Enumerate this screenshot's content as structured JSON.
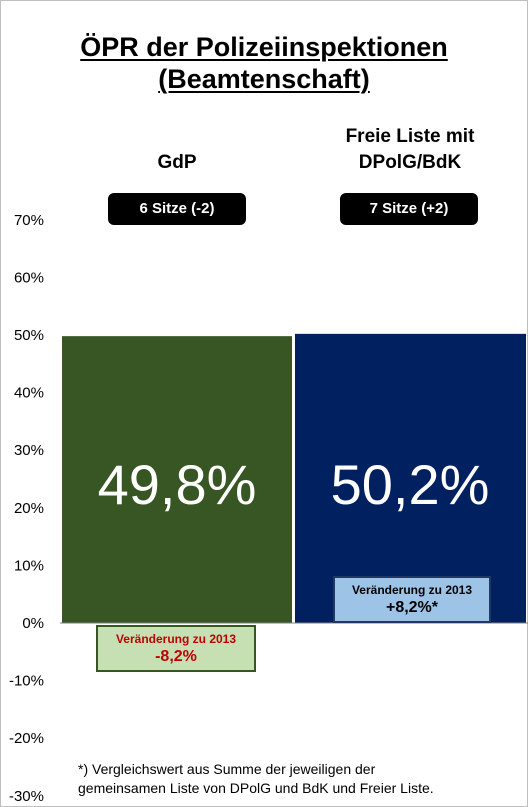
{
  "title": [
    "ÖPR der Polizeiinspektionen",
    "(Beamtenschaft)"
  ],
  "chart_data": {
    "type": "bar",
    "categories": [
      "GdP",
      "Freie Liste mit DPolG/BdK"
    ],
    "category_lines": [
      [
        "GdP"
      ],
      [
        "Freie Liste mit",
        "DPolG/BdK"
      ]
    ],
    "values": [
      49.8,
      50.2
    ],
    "value_labels": [
      "49,8%",
      "50,2%"
    ],
    "seats": [
      "6 Sitze (-2)",
      "7 Sitze (+2)"
    ],
    "change_title": "Veränderung zu 2013",
    "changes": [
      "-8,2%",
      "+8,2%*"
    ],
    "change_values": [
      -8.2,
      8.2
    ],
    "colors": [
      "#375623",
      "#002060"
    ],
    "change_box_colors": [
      {
        "fill": "#c6e0b4",
        "border": "#375623",
        "text": "#c00000"
      },
      {
        "fill": "#9dc3e6",
        "border": "#1f3864",
        "text": "#000000"
      }
    ],
    "y_ticks": [
      -30,
      -20,
      -10,
      0,
      10,
      20,
      30,
      40,
      50,
      60,
      70
    ],
    "y_tick_labels": [
      "-30%",
      "-20%",
      "-10%",
      "0%",
      "10%",
      "20%",
      "30%",
      "40%",
      "50%",
      "60%",
      "70%"
    ],
    "ylim": [
      -30,
      70
    ],
    "grid": false
  },
  "footnote": [
    "*) Vergleichswert aus Summe der jeweiligen der",
    "gemeinsamen Liste von DPolG und BdK und Freier Liste."
  ]
}
